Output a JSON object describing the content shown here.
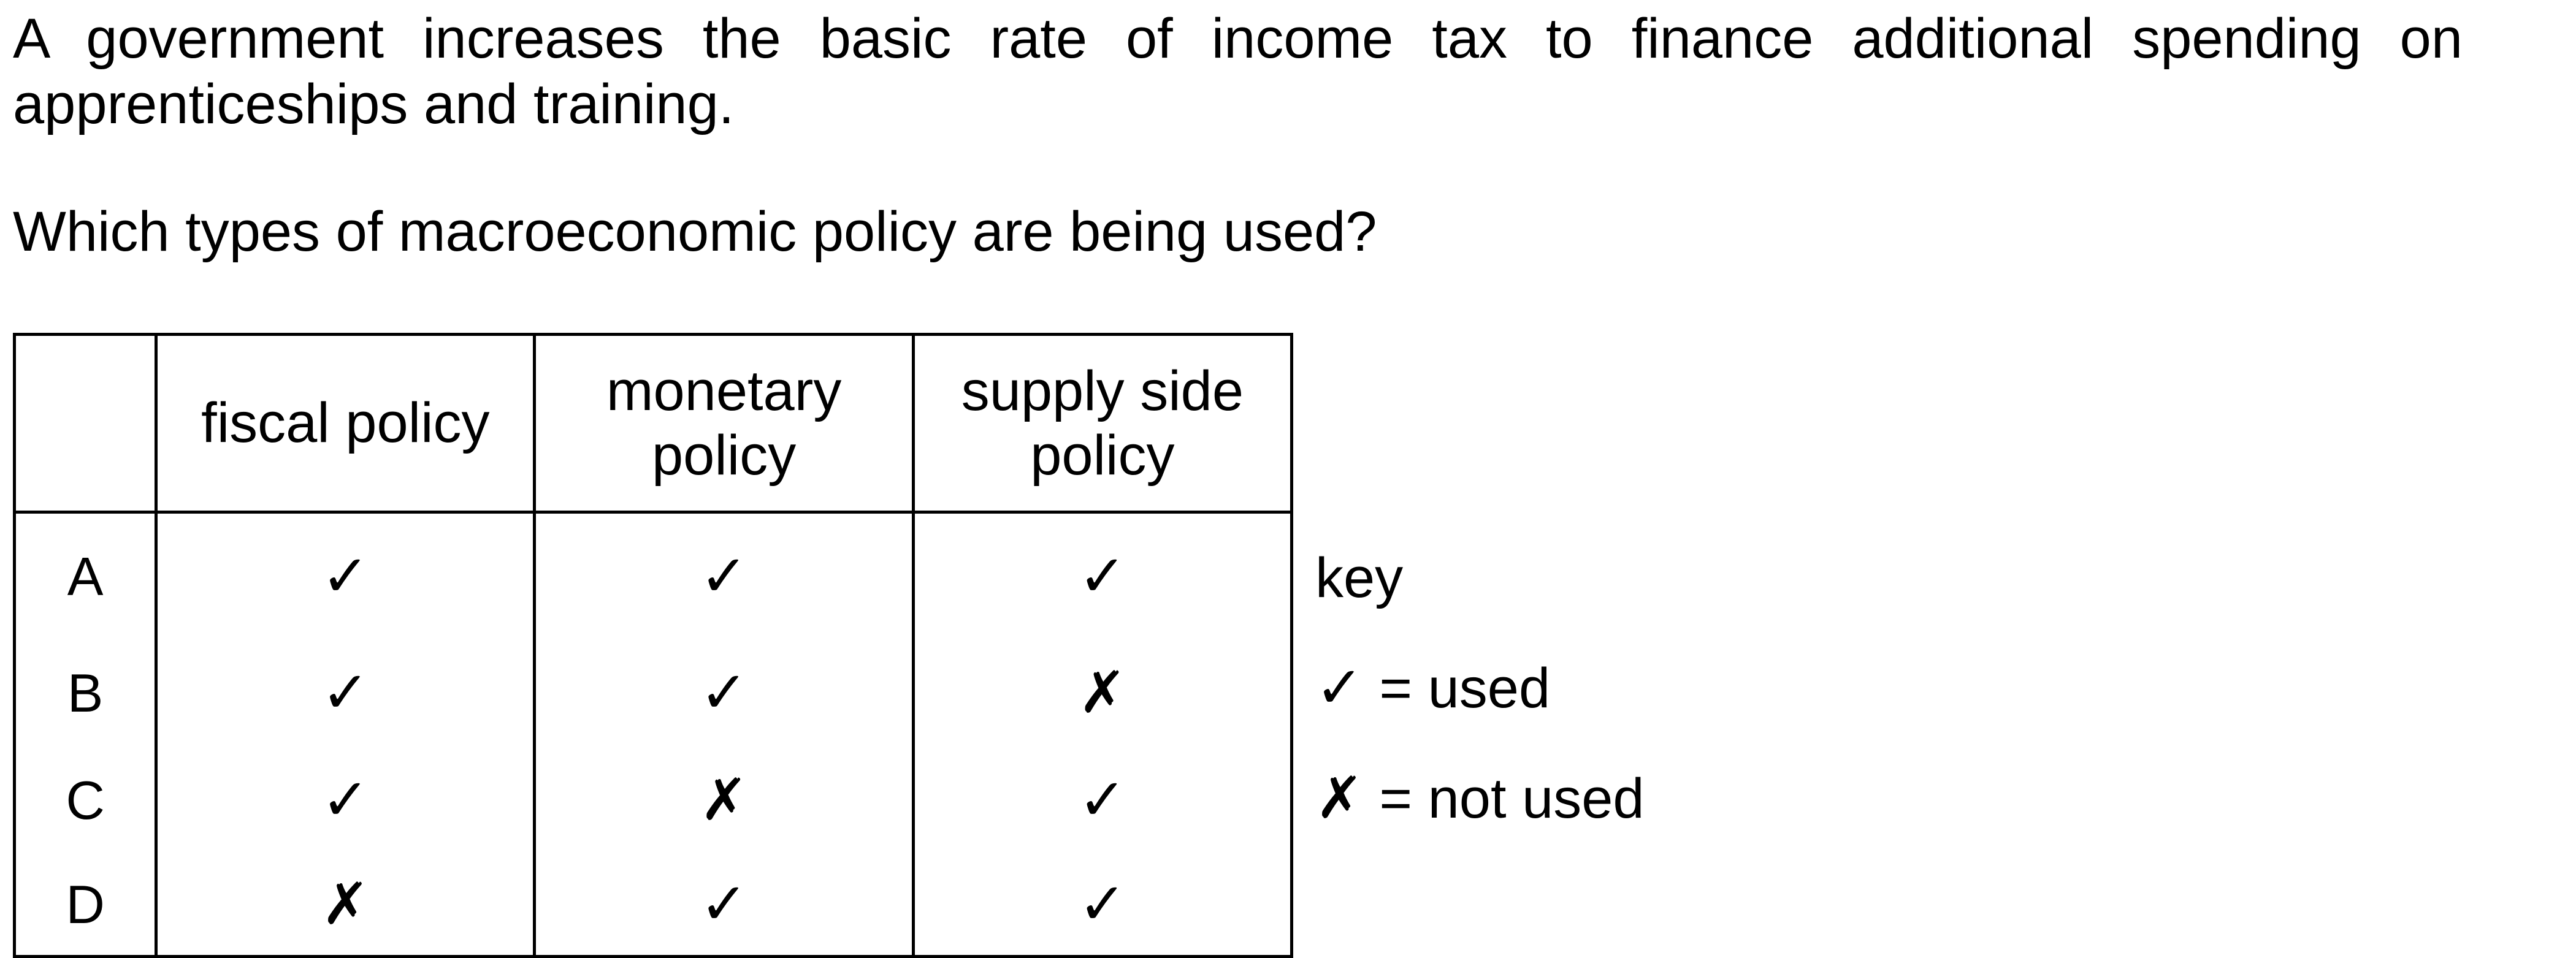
{
  "question": {
    "text": "A government increases the basic rate of income tax to finance additional spending on apprenticeships and training.",
    "prompt": "Which types of macroeconomic policy are being used?"
  },
  "table": {
    "headers": [
      "",
      "fiscal policy",
      "monetary policy",
      "supply side policy"
    ],
    "rows": [
      {
        "letter": "A",
        "marks": [
          "✓",
          "✓",
          "✓"
        ]
      },
      {
        "letter": "B",
        "marks": [
          "✓",
          "✓",
          "✗"
        ]
      },
      {
        "letter": "C",
        "marks": [
          "✓",
          "✗",
          "✓"
        ]
      },
      {
        "letter": "D",
        "marks": [
          "✗",
          "✓",
          "✓"
        ]
      }
    ]
  },
  "key": {
    "title": "key",
    "used_symbol": "✓",
    "used_text": "= used",
    "not_used_symbol": "✗",
    "not_used_text": "= not used"
  }
}
